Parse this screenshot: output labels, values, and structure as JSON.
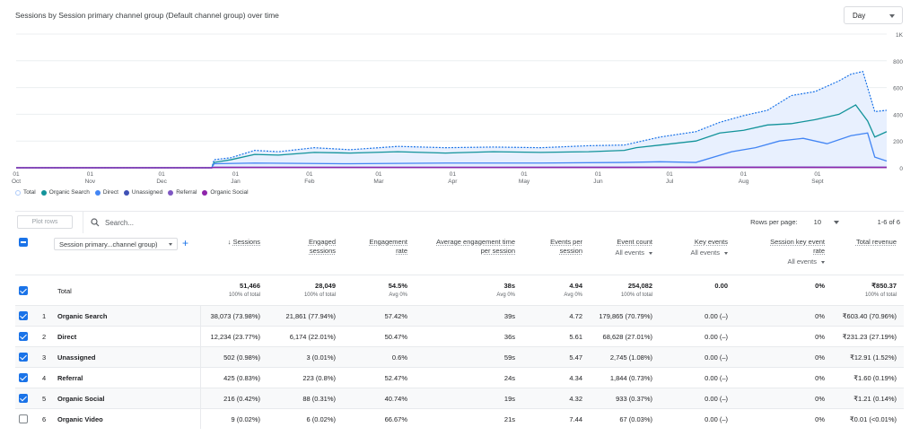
{
  "chart_title": "Sessions by Session primary channel group (Default channel group) over time",
  "granularity": {
    "label": "Day"
  },
  "chart_data": {
    "type": "line",
    "y_ticks": [
      "1K",
      "800",
      "600",
      "400",
      "200",
      "0"
    ],
    "ylim": [
      0,
      1000
    ],
    "x_ticks": [
      {
        "day": "01",
        "month": "Oct"
      },
      {
        "day": "01",
        "month": "Nov"
      },
      {
        "day": "01",
        "month": "Dec"
      },
      {
        "day": "01",
        "month": "Jan"
      },
      {
        "day": "01",
        "month": "Feb"
      },
      {
        "day": "01",
        "month": "Mar"
      },
      {
        "day": "01",
        "month": "Apr"
      },
      {
        "day": "01",
        "month": "May"
      },
      {
        "day": "01",
        "month": "Jun"
      },
      {
        "day": "01",
        "month": "Jul"
      },
      {
        "day": "01",
        "month": "Aug"
      },
      {
        "day": "01",
        "month": "Sept"
      }
    ],
    "x_range": [
      0,
      365
    ],
    "month_day_offsets": [
      0,
      31,
      61,
      92,
      123,
      152,
      183,
      213,
      244,
      274,
      305,
      336
    ],
    "series": [
      {
        "name": "Total",
        "color": "#1a73e8",
        "style": "dotted-filled",
        "points": [
          [
            0,
            0
          ],
          [
            82,
            0
          ],
          [
            83,
            60
          ],
          [
            90,
            75
          ],
          [
            100,
            130
          ],
          [
            110,
            120
          ],
          [
            125,
            150
          ],
          [
            140,
            135
          ],
          [
            160,
            160
          ],
          [
            180,
            150
          ],
          [
            200,
            155
          ],
          [
            220,
            150
          ],
          [
            240,
            165
          ],
          [
            255,
            170
          ],
          [
            260,
            190
          ],
          [
            270,
            230
          ],
          [
            285,
            270
          ],
          [
            295,
            340
          ],
          [
            305,
            390
          ],
          [
            315,
            430
          ],
          [
            325,
            540
          ],
          [
            335,
            570
          ],
          [
            345,
            650
          ],
          [
            350,
            700
          ],
          [
            355,
            720
          ],
          [
            360,
            420
          ],
          [
            365,
            430
          ]
        ]
      },
      {
        "name": "Organic Search",
        "color": "#12939a",
        "style": "solid",
        "points": [
          [
            0,
            0
          ],
          [
            82,
            0
          ],
          [
            83,
            40
          ],
          [
            90,
            60
          ],
          [
            100,
            100
          ],
          [
            110,
            95
          ],
          [
            125,
            115
          ],
          [
            140,
            110
          ],
          [
            160,
            120
          ],
          [
            180,
            110
          ],
          [
            200,
            120
          ],
          [
            220,
            115
          ],
          [
            240,
            120
          ],
          [
            255,
            130
          ],
          [
            260,
            150
          ],
          [
            270,
            170
          ],
          [
            285,
            200
          ],
          [
            295,
            260
          ],
          [
            305,
            280
          ],
          [
            315,
            320
          ],
          [
            325,
            330
          ],
          [
            335,
            360
          ],
          [
            345,
            400
          ],
          [
            352,
            470
          ],
          [
            357,
            350
          ],
          [
            360,
            230
          ],
          [
            365,
            270
          ]
        ]
      },
      {
        "name": "Direct",
        "color": "#4285f4",
        "style": "solid",
        "points": [
          [
            0,
            0
          ],
          [
            82,
            0
          ],
          [
            83,
            30
          ],
          [
            100,
            35
          ],
          [
            140,
            30
          ],
          [
            180,
            35
          ],
          [
            220,
            35
          ],
          [
            255,
            40
          ],
          [
            270,
            45
          ],
          [
            285,
            40
          ],
          [
            300,
            120
          ],
          [
            310,
            150
          ],
          [
            320,
            200
          ],
          [
            330,
            220
          ],
          [
            340,
            180
          ],
          [
            350,
            240
          ],
          [
            357,
            260
          ],
          [
            360,
            80
          ],
          [
            365,
            50
          ]
        ]
      },
      {
        "name": "Unassigned",
        "color": "#3f51b5",
        "style": "solid",
        "points": [
          [
            0,
            0
          ],
          [
            82,
            0
          ],
          [
            83,
            3
          ],
          [
            365,
            3
          ]
        ]
      },
      {
        "name": "Referral",
        "color": "#7e57c2",
        "style": "solid",
        "points": [
          [
            0,
            0
          ],
          [
            82,
            0
          ],
          [
            83,
            4
          ],
          [
            200,
            4
          ],
          [
            330,
            6
          ],
          [
            365,
            5
          ]
        ]
      },
      {
        "name": "Organic Social",
        "color": "#8e24aa",
        "style": "solid",
        "points": [
          [
            0,
            0
          ],
          [
            82,
            0
          ],
          [
            83,
            2
          ],
          [
            250,
            2
          ],
          [
            300,
            3
          ],
          [
            365,
            2
          ]
        ]
      }
    ]
  },
  "legend": [
    {
      "name": "Total",
      "color": "#aecbfa",
      "hollow": true
    },
    {
      "name": "Organic Search",
      "color": "#12939a"
    },
    {
      "name": "Direct",
      "color": "#4285f4"
    },
    {
      "name": "Unassigned",
      "color": "#3f51b5"
    },
    {
      "name": "Referral",
      "color": "#7e57c2"
    },
    {
      "name": "Organic Social",
      "color": "#8e24aa"
    }
  ],
  "toolbar": {
    "plot_rows": "Plot rows",
    "search_placeholder": "Search...",
    "rows_per_page_label": "Rows per page:",
    "rows_per_page_value": "10",
    "pagination": "1-6 of 6"
  },
  "dimension_select": "Session primary...channel group)",
  "columns": {
    "sessions": {
      "line1": "Sessions",
      "arrow": "↓"
    },
    "engaged": {
      "line1": "Engaged",
      "line2": "sessions"
    },
    "engagement_rate": {
      "line1": "Engagement",
      "line2": "rate"
    },
    "avg_engagement": {
      "line1": "Average engagement time",
      "line2": "per session"
    },
    "events_per_session": {
      "line1": "Events per",
      "line2": "session"
    },
    "event_count": {
      "line1": "Event count",
      "sub": "All events"
    },
    "key_events": {
      "line1": "Key events",
      "sub": "All events"
    },
    "session_key_rate": {
      "line1": "Session key event",
      "line2": "rate",
      "sub": "All events"
    },
    "total_revenue": {
      "line1": "Total revenue"
    }
  },
  "totals": {
    "label": "Total",
    "sessions": "51,466",
    "sessions_sub": "100% of total",
    "engaged": "28,049",
    "engaged_sub": "100% of total",
    "engagement_rate": "54.5%",
    "engagement_rate_sub": "Avg 0%",
    "avg_engagement": "38s",
    "avg_engagement_sub": "Avg 0%",
    "events_per_session": "4.94",
    "events_per_session_sub": "Avg 0%",
    "event_count": "254,082",
    "event_count_sub": "100% of total",
    "key_events": "0.00",
    "session_key_rate": "0%",
    "total_revenue": "₹850.37",
    "total_revenue_sub": "100% of total"
  },
  "rows": [
    {
      "num": "1",
      "name": "Organic Search",
      "checked": true,
      "sessions": "38,073 (73.98%)",
      "engaged": "21,861 (77.94%)",
      "engagement_rate": "57.42%",
      "avg_engagement": "39s",
      "events_per_session": "4.72",
      "event_count": "179,865 (70.79%)",
      "key_events": "0.00 (–)",
      "session_key_rate": "0%",
      "total_revenue": "₹603.40 (70.96%)"
    },
    {
      "num": "2",
      "name": "Direct",
      "checked": true,
      "sessions": "12,234 (23.77%)",
      "engaged": "6,174 (22.01%)",
      "engagement_rate": "50.47%",
      "avg_engagement": "36s",
      "events_per_session": "5.61",
      "event_count": "68,628 (27.01%)",
      "key_events": "0.00 (–)",
      "session_key_rate": "0%",
      "total_revenue": "₹231.23 (27.19%)"
    },
    {
      "num": "3",
      "name": "Unassigned",
      "checked": true,
      "sessions": "502 (0.98%)",
      "engaged": "3 (0.01%)",
      "engagement_rate": "0.6%",
      "avg_engagement": "59s",
      "events_per_session": "5.47",
      "event_count": "2,745 (1.08%)",
      "key_events": "0.00 (–)",
      "session_key_rate": "0%",
      "total_revenue": "₹12.91 (1.52%)"
    },
    {
      "num": "4",
      "name": "Referral",
      "checked": true,
      "sessions": "425 (0.83%)",
      "engaged": "223 (0.8%)",
      "engagement_rate": "52.47%",
      "avg_engagement": "24s",
      "events_per_session": "4.34",
      "event_count": "1,844 (0.73%)",
      "key_events": "0.00 (–)",
      "session_key_rate": "0%",
      "total_revenue": "₹1.60 (0.19%)"
    },
    {
      "num": "5",
      "name": "Organic Social",
      "checked": true,
      "sessions": "216 (0.42%)",
      "engaged": "88 (0.31%)",
      "engagement_rate": "40.74%",
      "avg_engagement": "19s",
      "events_per_session": "4.32",
      "event_count": "933 (0.37%)",
      "key_events": "0.00 (–)",
      "session_key_rate": "0%",
      "total_revenue": "₹1.21 (0.14%)"
    },
    {
      "num": "6",
      "name": "Organic Video",
      "checked": false,
      "sessions": "9 (0.02%)",
      "engaged": "6 (0.02%)",
      "engagement_rate": "66.67%",
      "avg_engagement": "21s",
      "events_per_session": "7.44",
      "event_count": "67 (0.03%)",
      "key_events": "0.00 (–)",
      "session_key_rate": "0%",
      "total_revenue": "₹0.01 (<0.01%)"
    }
  ]
}
